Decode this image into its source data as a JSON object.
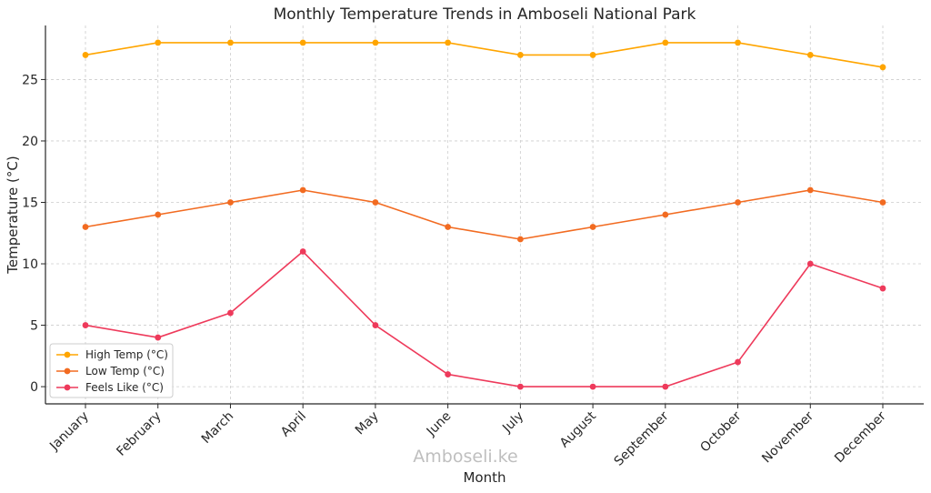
{
  "chart_data": {
    "type": "line",
    "title": "Monthly Temperature Trends in Amboseli National Park",
    "xlabel": "Month",
    "ylabel": "Temperature (°C)",
    "categories": [
      "January",
      "February",
      "March",
      "April",
      "May",
      "June",
      "July",
      "August",
      "September",
      "October",
      "November",
      "December"
    ],
    "ylim": [
      -1.4,
      29.4
    ],
    "yticks": [
      0,
      5,
      10,
      15,
      20,
      25
    ],
    "grid": true,
    "legend_position": "lower-left",
    "series": [
      {
        "name": "High Temp (°C)",
        "color": "#FFA500",
        "values": [
          27,
          28,
          28,
          28,
          28,
          28,
          27,
          27,
          28,
          28,
          27,
          26
        ]
      },
      {
        "name": "Low Temp (°C)",
        "color": "#F26B21",
        "values": [
          13,
          14,
          15,
          16,
          15,
          13,
          12,
          13,
          14,
          15,
          16,
          15
        ]
      },
      {
        "name": "Feels Like (°C)",
        "color": "#EE3A5B",
        "values": [
          5,
          4,
          6,
          11,
          5,
          1,
          0,
          0,
          0,
          2,
          10,
          8
        ]
      }
    ]
  },
  "watermark": "Amboseli.ke"
}
